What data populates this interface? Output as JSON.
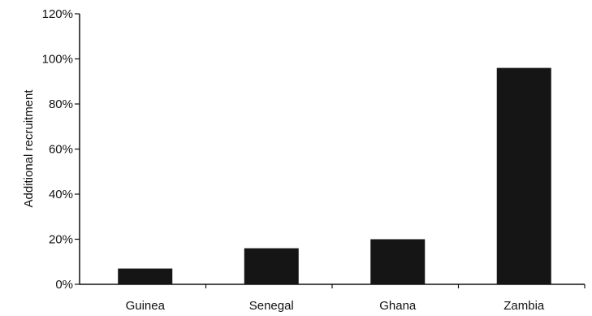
{
  "chart_data": {
    "type": "bar",
    "title": "",
    "xlabel": "",
    "ylabel": "Additional recruitment",
    "categories": [
      "Guinea",
      "Senegal",
      "Ghana",
      "Zambia"
    ],
    "values": [
      7,
      16,
      20,
      96
    ],
    "value_unit": "%",
    "ylim": [
      0,
      120
    ],
    "yticks": [
      "0%",
      "20%",
      "40%",
      "60%",
      "80%",
      "100%",
      "120%"
    ],
    "grid": false,
    "legend": "none",
    "bar_color": "#151515"
  }
}
